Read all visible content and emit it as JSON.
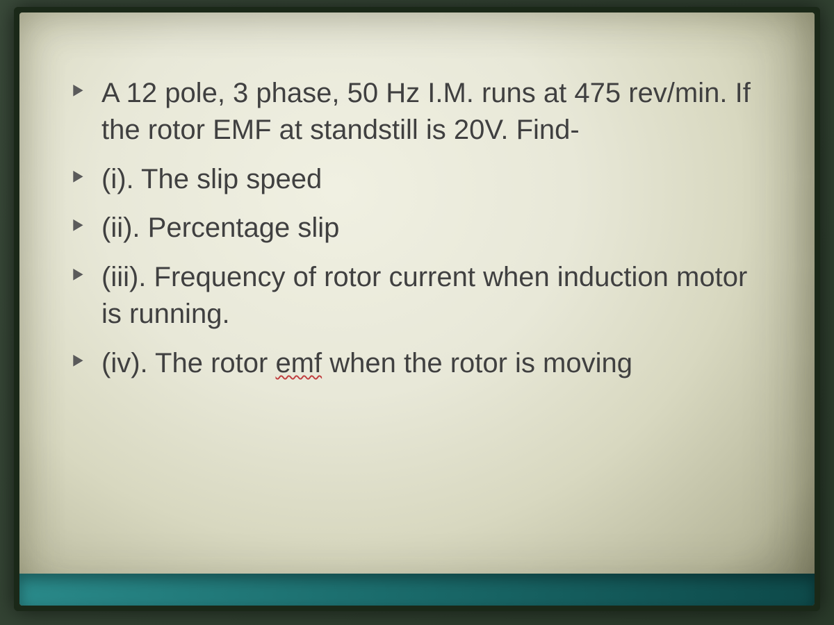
{
  "slide": {
    "text_color": "#404040",
    "bullet_color": "#5a5a5a",
    "background_gradient": {
      "type": "radial",
      "stops": [
        "#f0f0e2",
        "#e8e8d8",
        "#d8d8c0",
        "#b8b89c",
        "#8a8a70"
      ]
    },
    "font_family": "Trebuchet MS",
    "font_size_pt": 30,
    "line_height": 1.32,
    "accent_band_color": "#1a6a6a",
    "items": [
      {
        "text": "A 12 pole, 3 phase, 50 Hz I.M. runs at 475 rev/min.  If the rotor EMF at standstill is 20V. Find-",
        "wavy_word": null
      },
      {
        "text": "(i). The slip speed",
        "wavy_word": null
      },
      {
        "text": "(ii). Percentage slip",
        "wavy_word": null
      },
      {
        "text": "(iii). Frequency of rotor current when induction motor is running.",
        "wavy_word": null
      },
      {
        "text_before": "(iv). The rotor ",
        "wavy_word": "emf",
        "text_after": " when the rotor is moving"
      }
    ]
  }
}
